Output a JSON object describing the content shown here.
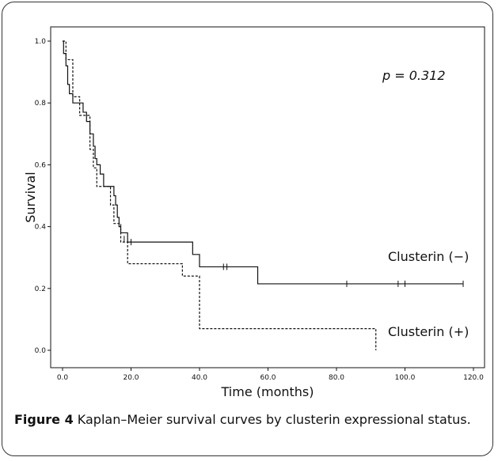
{
  "chart_data": {
    "type": "line",
    "title": "",
    "xlabel": "Time (months)",
    "ylabel": "Survival",
    "xlim": [
      0,
      120
    ],
    "ylim": [
      0,
      1.0
    ],
    "xticks": [
      "0.0",
      "20.0",
      "40.0",
      "60.0",
      "80.0",
      "100.0",
      "120.0"
    ],
    "yticks": [
      "0.0",
      "0.2",
      "0.4",
      "0.6",
      "0.8",
      "1.0"
    ],
    "annotation": "p = 0.312",
    "grid": false,
    "series": [
      {
        "name": "Clusterin (−)",
        "style": "solid",
        "points": [
          [
            0,
            1.0
          ],
          [
            0.3,
            0.96
          ],
          [
            1,
            0.92
          ],
          [
            1.5,
            0.86
          ],
          [
            2,
            0.83
          ],
          [
            3,
            0.8
          ],
          [
            5,
            0.8
          ],
          [
            6,
            0.77
          ],
          [
            7,
            0.74
          ],
          [
            8,
            0.7
          ],
          [
            9,
            0.66
          ],
          [
            9.5,
            0.62
          ],
          [
            10,
            0.6
          ],
          [
            11,
            0.57
          ],
          [
            12,
            0.53
          ],
          [
            15,
            0.5
          ],
          [
            15.5,
            0.47
          ],
          [
            16,
            0.43
          ],
          [
            16.5,
            0.4
          ],
          [
            17,
            0.38
          ],
          [
            19,
            0.35
          ],
          [
            38,
            0.31
          ],
          [
            40,
            0.27
          ],
          [
            57,
            0.215
          ],
          [
            117,
            0.215
          ]
        ],
        "censored": [
          [
            18,
            0.36
          ],
          [
            20,
            0.35
          ],
          [
            47,
            0.27
          ],
          [
            48,
            0.27
          ],
          [
            83,
            0.215
          ],
          [
            98,
            0.215
          ],
          [
            100,
            0.215
          ],
          [
            117,
            0.215
          ]
        ]
      },
      {
        "name": "Clusterin (+)",
        "style": "dashed",
        "points": [
          [
            0,
            1.0
          ],
          [
            1,
            0.94
          ],
          [
            3,
            0.82
          ],
          [
            5,
            0.76
          ],
          [
            8,
            0.65
          ],
          [
            9,
            0.59
          ],
          [
            10,
            0.53
          ],
          [
            13,
            0.53
          ],
          [
            14,
            0.47
          ],
          [
            15,
            0.41
          ],
          [
            17,
            0.35
          ],
          [
            19,
            0.28
          ],
          [
            35,
            0.24
          ],
          [
            36,
            0.24
          ],
          [
            40,
            0.07
          ],
          [
            91.5,
            0.07
          ],
          [
            91.5,
            0.0
          ]
        ],
        "censored": []
      }
    ]
  },
  "caption": {
    "label": "Figure 4",
    "text": " Kaplan–Meier survival curves by clusterin expressional status."
  },
  "colors": {
    "line": "#111111",
    "frame": "#333333"
  }
}
